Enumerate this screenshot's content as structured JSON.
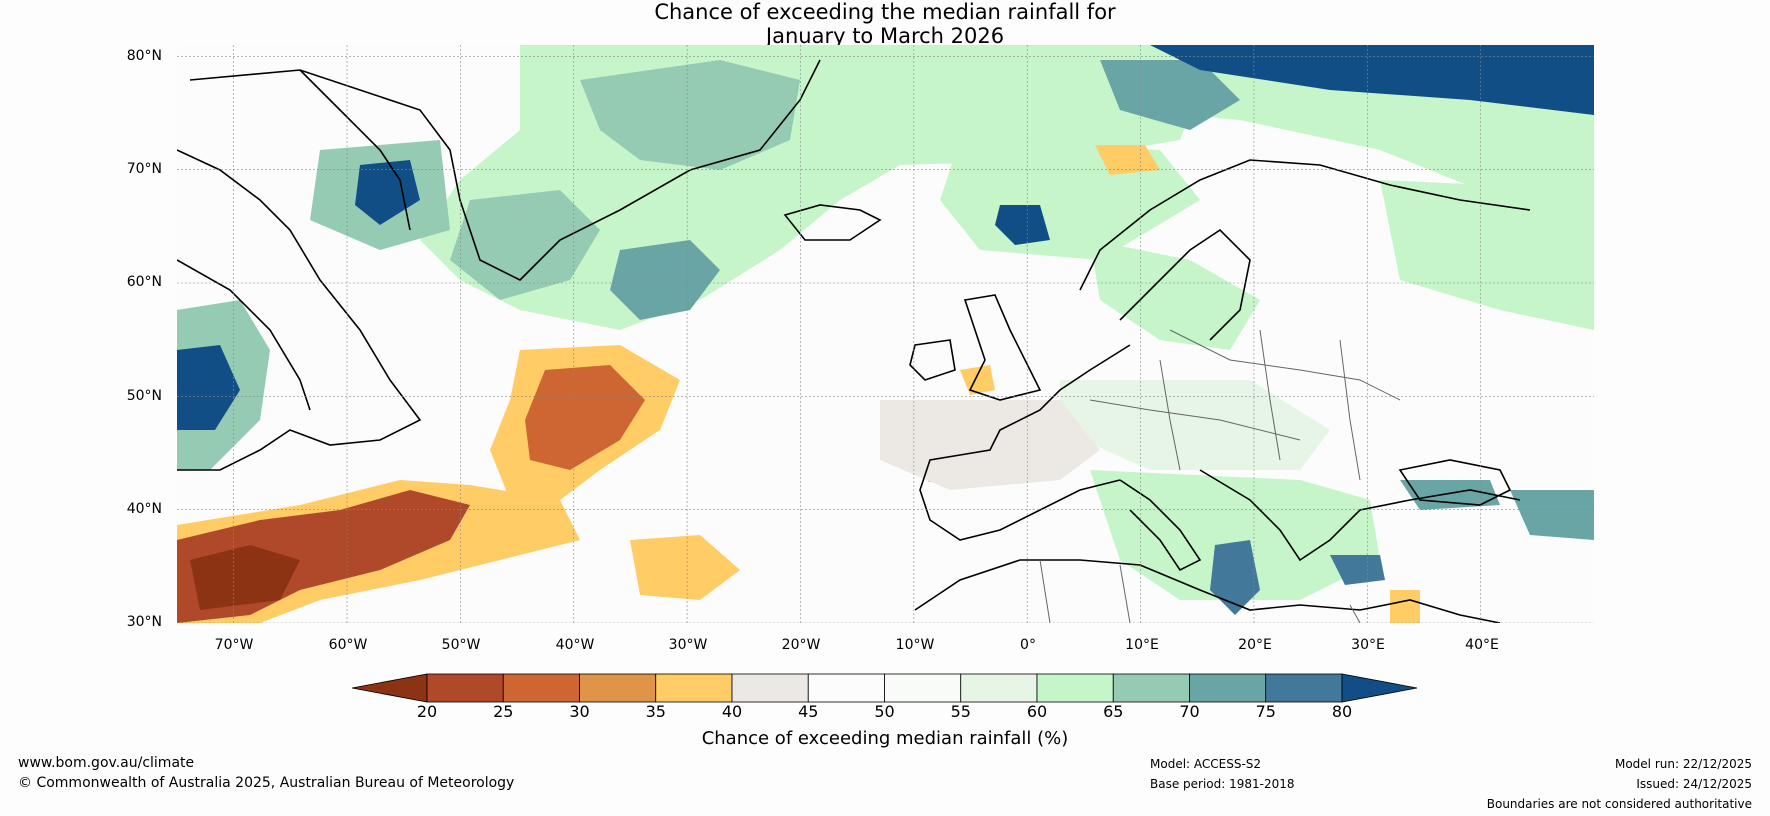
{
  "title": {
    "line1": "Chance of exceeding the median rainfall for",
    "line2": "January to March 2026"
  },
  "map": {
    "latitude_labels": [
      "80°N",
      "70°N",
      "60°N",
      "50°N",
      "40°N",
      "30°N"
    ],
    "longitude_labels": [
      "70°W",
      "60°W",
      "50°W",
      "40°W",
      "30°W",
      "20°W",
      "10°W",
      "0°",
      "10°E",
      "20°E",
      "30°E",
      "40°E"
    ],
    "extent": {
      "lon_min": -75,
      "lon_max": 50,
      "lat_min": 30,
      "lat_max": 81
    },
    "gridlines": true
  },
  "colorbar": {
    "tick_labels": [
      "20",
      "25",
      "30",
      "35",
      "40",
      "45",
      "50",
      "55",
      "60",
      "65",
      "70",
      "75",
      "80"
    ],
    "colors": [
      "#8b3312",
      "#b0492a",
      "#cd6632",
      "#e0944a",
      "#ffcc66",
      "#ece9e4",
      "#fbfcfb",
      "#f8fbf8",
      "#e6f5e5",
      "#c5f5c9",
      "#96cbb3",
      "#6aa5a6",
      "#42789a",
      "#104e85"
    ],
    "label": "Chance of exceeding median rainfall (%)"
  },
  "footer": {
    "website": "www.bom.gov.au/climate",
    "copyright": "© Commonwealth of Australia 2025, Australian Bureau of Meteorology",
    "model": "Model: ACCESS-S2",
    "base_period": "Base period: 1981-2018",
    "model_run": "Model run: 22/12/2025",
    "issued": "Issued: 24/12/2025",
    "disclaimer": "Boundaries are not considered authoritative"
  }
}
